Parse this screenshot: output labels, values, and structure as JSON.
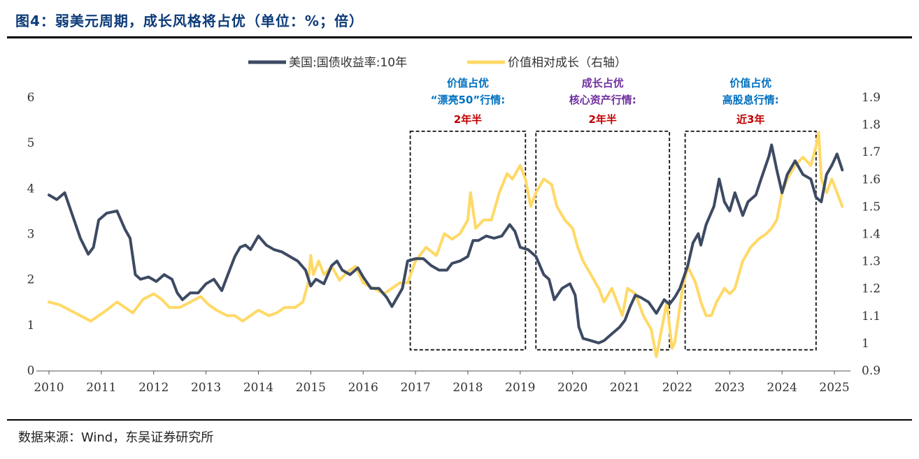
{
  "header": {
    "title": "图4：弱美元周期，成长风格将占优（单位：%；倍）"
  },
  "footer": {
    "source": "数据来源：Wind，东吴证券研究所"
  },
  "colors": {
    "yield": "#3d4a63",
    "growth": "#ffd966",
    "blue_text": "#0070c0",
    "purple_text": "#7030a0",
    "red_text": "#c00000"
  },
  "chart_data": {
    "type": "line",
    "title": "",
    "legend": {
      "placement": "top-center",
      "entries": [
        "美国:国债收益率:10年",
        "价值相对成长（右轴）"
      ]
    },
    "x_ticks": [
      "2010",
      "2011",
      "2012",
      "2013",
      "2014",
      "2015",
      "2016",
      "2017",
      "2018",
      "2019",
      "2020",
      "2021",
      "2022",
      "2023",
      "2024",
      "2025"
    ],
    "xlim": [
      2010.0,
      2025.2
    ],
    "y_left": {
      "ylim": [
        0,
        6
      ],
      "ticks": [
        "0",
        "1",
        "2",
        "3",
        "4",
        "5",
        "6"
      ]
    },
    "y_right": {
      "ylim": [
        0.9,
        1.9
      ],
      "ticks": [
        "0.9",
        "1",
        "1.1",
        "1.2",
        "1.3",
        "1.4",
        "1.5",
        "1.6",
        "1.7",
        "1.8",
        "1.9"
      ]
    },
    "grid": false,
    "series": [
      {
        "name": "美国:国债收益率:10年",
        "axis": "left",
        "color": "#3d4a63",
        "points": [
          [
            2010.0,
            3.85
          ],
          [
            2010.15,
            3.75
          ],
          [
            2010.3,
            3.9
          ],
          [
            2010.45,
            3.4
          ],
          [
            2010.6,
            2.9
          ],
          [
            2010.75,
            2.55
          ],
          [
            2010.85,
            2.7
          ],
          [
            2010.95,
            3.3
          ],
          [
            2011.1,
            3.45
          ],
          [
            2011.3,
            3.5
          ],
          [
            2011.45,
            3.1
          ],
          [
            2011.55,
            2.9
          ],
          [
            2011.65,
            2.1
          ],
          [
            2011.75,
            2.0
          ],
          [
            2011.9,
            2.05
          ],
          [
            2012.05,
            1.95
          ],
          [
            2012.2,
            2.1
          ],
          [
            2012.35,
            2.0
          ],
          [
            2012.45,
            1.7
          ],
          [
            2012.55,
            1.55
          ],
          [
            2012.7,
            1.7
          ],
          [
            2012.85,
            1.7
          ],
          [
            2013.0,
            1.9
          ],
          [
            2013.15,
            2.0
          ],
          [
            2013.3,
            1.75
          ],
          [
            2013.45,
            2.2
          ],
          [
            2013.55,
            2.5
          ],
          [
            2013.65,
            2.7
          ],
          [
            2013.75,
            2.75
          ],
          [
            2013.85,
            2.65
          ],
          [
            2014.0,
            2.95
          ],
          [
            2014.15,
            2.75
          ],
          [
            2014.3,
            2.65
          ],
          [
            2014.45,
            2.6
          ],
          [
            2014.6,
            2.5
          ],
          [
            2014.75,
            2.4
          ],
          [
            2014.9,
            2.2
          ],
          [
            2015.0,
            1.85
          ],
          [
            2015.1,
            2.0
          ],
          [
            2015.25,
            1.9
          ],
          [
            2015.4,
            2.3
          ],
          [
            2015.5,
            2.4
          ],
          [
            2015.6,
            2.2
          ],
          [
            2015.75,
            2.1
          ],
          [
            2015.9,
            2.25
          ],
          [
            2016.0,
            2.05
          ],
          [
            2016.15,
            1.8
          ],
          [
            2016.3,
            1.8
          ],
          [
            2016.45,
            1.6
          ],
          [
            2016.55,
            1.4
          ],
          [
            2016.65,
            1.6
          ],
          [
            2016.75,
            1.8
          ],
          [
            2016.85,
            2.4
          ],
          [
            2017.0,
            2.45
          ],
          [
            2017.15,
            2.45
          ],
          [
            2017.3,
            2.3
          ],
          [
            2017.45,
            2.2
          ],
          [
            2017.6,
            2.2
          ],
          [
            2017.7,
            2.35
          ],
          [
            2017.85,
            2.4
          ],
          [
            2018.0,
            2.5
          ],
          [
            2018.1,
            2.85
          ],
          [
            2018.2,
            2.85
          ],
          [
            2018.35,
            2.95
          ],
          [
            2018.5,
            2.9
          ],
          [
            2018.65,
            2.95
          ],
          [
            2018.8,
            3.2
          ],
          [
            2018.9,
            3.05
          ],
          [
            2019.0,
            2.7
          ],
          [
            2019.15,
            2.65
          ],
          [
            2019.3,
            2.5
          ],
          [
            2019.45,
            2.1
          ],
          [
            2019.55,
            2.0
          ],
          [
            2019.65,
            1.55
          ],
          [
            2019.8,
            1.8
          ],
          [
            2019.95,
            1.9
          ],
          [
            2020.05,
            1.65
          ],
          [
            2020.12,
            0.95
          ],
          [
            2020.2,
            0.7
          ],
          [
            2020.35,
            0.65
          ],
          [
            2020.5,
            0.6
          ],
          [
            2020.6,
            0.65
          ],
          [
            2020.75,
            0.8
          ],
          [
            2020.9,
            0.95
          ],
          [
            2021.0,
            1.1
          ],
          [
            2021.1,
            1.4
          ],
          [
            2021.2,
            1.65
          ],
          [
            2021.3,
            1.6
          ],
          [
            2021.45,
            1.5
          ],
          [
            2021.6,
            1.25
          ],
          [
            2021.75,
            1.55
          ],
          [
            2021.85,
            1.45
          ],
          [
            2021.95,
            1.6
          ],
          [
            2022.05,
            1.8
          ],
          [
            2022.2,
            2.3
          ],
          [
            2022.3,
            2.8
          ],
          [
            2022.4,
            3.0
          ],
          [
            2022.45,
            2.75
          ],
          [
            2022.55,
            3.2
          ],
          [
            2022.7,
            3.6
          ],
          [
            2022.8,
            4.2
          ],
          [
            2022.9,
            3.7
          ],
          [
            2023.0,
            3.5
          ],
          [
            2023.1,
            3.9
          ],
          [
            2023.25,
            3.4
          ],
          [
            2023.35,
            3.7
          ],
          [
            2023.5,
            3.85
          ],
          [
            2023.6,
            4.2
          ],
          [
            2023.75,
            4.7
          ],
          [
            2023.8,
            4.95
          ],
          [
            2023.9,
            4.4
          ],
          [
            2024.0,
            3.9
          ],
          [
            2024.1,
            4.3
          ],
          [
            2024.25,
            4.6
          ],
          [
            2024.4,
            4.3
          ],
          [
            2024.55,
            4.2
          ],
          [
            2024.65,
            3.8
          ],
          [
            2024.75,
            3.7
          ],
          [
            2024.85,
            4.3
          ],
          [
            2024.95,
            4.5
          ],
          [
            2025.05,
            4.75
          ],
          [
            2025.15,
            4.4
          ]
        ]
      },
      {
        "name": "价值相对成长（右轴）",
        "axis": "right",
        "color": "#ffd966",
        "points": [
          [
            2010.0,
            1.15
          ],
          [
            2010.2,
            1.14
          ],
          [
            2010.4,
            1.12
          ],
          [
            2010.6,
            1.1
          ],
          [
            2010.8,
            1.08
          ],
          [
            2010.95,
            1.1
          ],
          [
            2011.1,
            1.12
          ],
          [
            2011.3,
            1.15
          ],
          [
            2011.45,
            1.13
          ],
          [
            2011.6,
            1.11
          ],
          [
            2011.8,
            1.16
          ],
          [
            2012.0,
            1.18
          ],
          [
            2012.15,
            1.16
          ],
          [
            2012.3,
            1.13
          ],
          [
            2012.5,
            1.13
          ],
          [
            2012.7,
            1.15
          ],
          [
            2012.9,
            1.17
          ],
          [
            2013.05,
            1.14
          ],
          [
            2013.2,
            1.12
          ],
          [
            2013.4,
            1.1
          ],
          [
            2013.55,
            1.1
          ],
          [
            2013.7,
            1.08
          ],
          [
            2013.85,
            1.1
          ],
          [
            2014.0,
            1.12
          ],
          [
            2014.2,
            1.1
          ],
          [
            2014.35,
            1.11
          ],
          [
            2014.5,
            1.13
          ],
          [
            2014.7,
            1.13
          ],
          [
            2014.85,
            1.15
          ],
          [
            2014.95,
            1.22
          ],
          [
            2015.0,
            1.32
          ],
          [
            2015.05,
            1.25
          ],
          [
            2015.15,
            1.3
          ],
          [
            2015.25,
            1.25
          ],
          [
            2015.4,
            1.28
          ],
          [
            2015.55,
            1.23
          ],
          [
            2015.7,
            1.26
          ],
          [
            2015.85,
            1.28
          ],
          [
            2016.0,
            1.22
          ],
          [
            2016.2,
            1.2
          ],
          [
            2016.4,
            1.18
          ],
          [
            2016.55,
            1.2
          ],
          [
            2016.7,
            1.22
          ],
          [
            2016.85,
            1.22
          ],
          [
            2017.0,
            1.3
          ],
          [
            2017.2,
            1.35
          ],
          [
            2017.4,
            1.32
          ],
          [
            2017.55,
            1.4
          ],
          [
            2017.7,
            1.38
          ],
          [
            2017.85,
            1.4
          ],
          [
            2018.0,
            1.45
          ],
          [
            2018.05,
            1.55
          ],
          [
            2018.15,
            1.42
          ],
          [
            2018.3,
            1.45
          ],
          [
            2018.45,
            1.45
          ],
          [
            2018.6,
            1.55
          ],
          [
            2018.75,
            1.62
          ],
          [
            2018.85,
            1.6
          ],
          [
            2019.0,
            1.65
          ],
          [
            2019.1,
            1.6
          ],
          [
            2019.2,
            1.5
          ],
          [
            2019.3,
            1.55
          ],
          [
            2019.45,
            1.6
          ],
          [
            2019.6,
            1.58
          ],
          [
            2019.7,
            1.5
          ],
          [
            2019.85,
            1.45
          ],
          [
            2020.0,
            1.42
          ],
          [
            2020.1,
            1.35
          ],
          [
            2020.2,
            1.3
          ],
          [
            2020.35,
            1.25
          ],
          [
            2020.5,
            1.2
          ],
          [
            2020.6,
            1.15
          ],
          [
            2020.75,
            1.2
          ],
          [
            2020.85,
            1.15
          ],
          [
            2020.95,
            1.1
          ],
          [
            2021.05,
            1.2
          ],
          [
            2021.2,
            1.18
          ],
          [
            2021.35,
            1.1
          ],
          [
            2021.5,
            1.05
          ],
          [
            2021.6,
            0.95
          ],
          [
            2021.7,
            1.05
          ],
          [
            2021.8,
            1.15
          ],
          [
            2021.9,
            0.98
          ],
          [
            2021.95,
            1.0
          ],
          [
            2022.1,
            1.2
          ],
          [
            2022.2,
            1.28
          ],
          [
            2022.35,
            1.22
          ],
          [
            2022.45,
            1.15
          ],
          [
            2022.55,
            1.1
          ],
          [
            2022.65,
            1.1
          ],
          [
            2022.75,
            1.15
          ],
          [
            2022.9,
            1.2
          ],
          [
            2023.0,
            1.18
          ],
          [
            2023.1,
            1.2
          ],
          [
            2023.25,
            1.3
          ],
          [
            2023.4,
            1.35
          ],
          [
            2023.55,
            1.38
          ],
          [
            2023.7,
            1.4
          ],
          [
            2023.8,
            1.42
          ],
          [
            2023.9,
            1.45
          ],
          [
            2024.0,
            1.55
          ],
          [
            2024.1,
            1.6
          ],
          [
            2024.25,
            1.65
          ],
          [
            2024.4,
            1.68
          ],
          [
            2024.55,
            1.65
          ],
          [
            2024.65,
            1.72
          ],
          [
            2024.7,
            1.77
          ],
          [
            2024.75,
            1.6
          ],
          [
            2024.85,
            1.55
          ],
          [
            2024.95,
            1.6
          ],
          [
            2025.05,
            1.55
          ],
          [
            2025.15,
            1.5
          ]
        ]
      }
    ],
    "annotations": [
      {
        "lines": [
          "价值占优",
          "“漂亮50”行情:"
        ],
        "sub": "2年半",
        "color": "#0070c0",
        "x_range": [
          2016.9,
          2019.1
        ],
        "y_range": [
          0.45,
          5.25
        ]
      },
      {
        "lines": [
          "成长占优",
          "核心资产行情:"
        ],
        "sub": "2年半",
        "color": "#7030a0",
        "x_range": [
          2019.3,
          2021.85
        ],
        "y_range": [
          0.45,
          5.25
        ]
      },
      {
        "lines": [
          "价值占优",
          "高股息行情:"
        ],
        "sub": "近3年",
        "color": "#0070c0",
        "x_range": [
          2022.15,
          2024.65
        ],
        "y_range": [
          0.45,
          5.25
        ]
      }
    ]
  }
}
